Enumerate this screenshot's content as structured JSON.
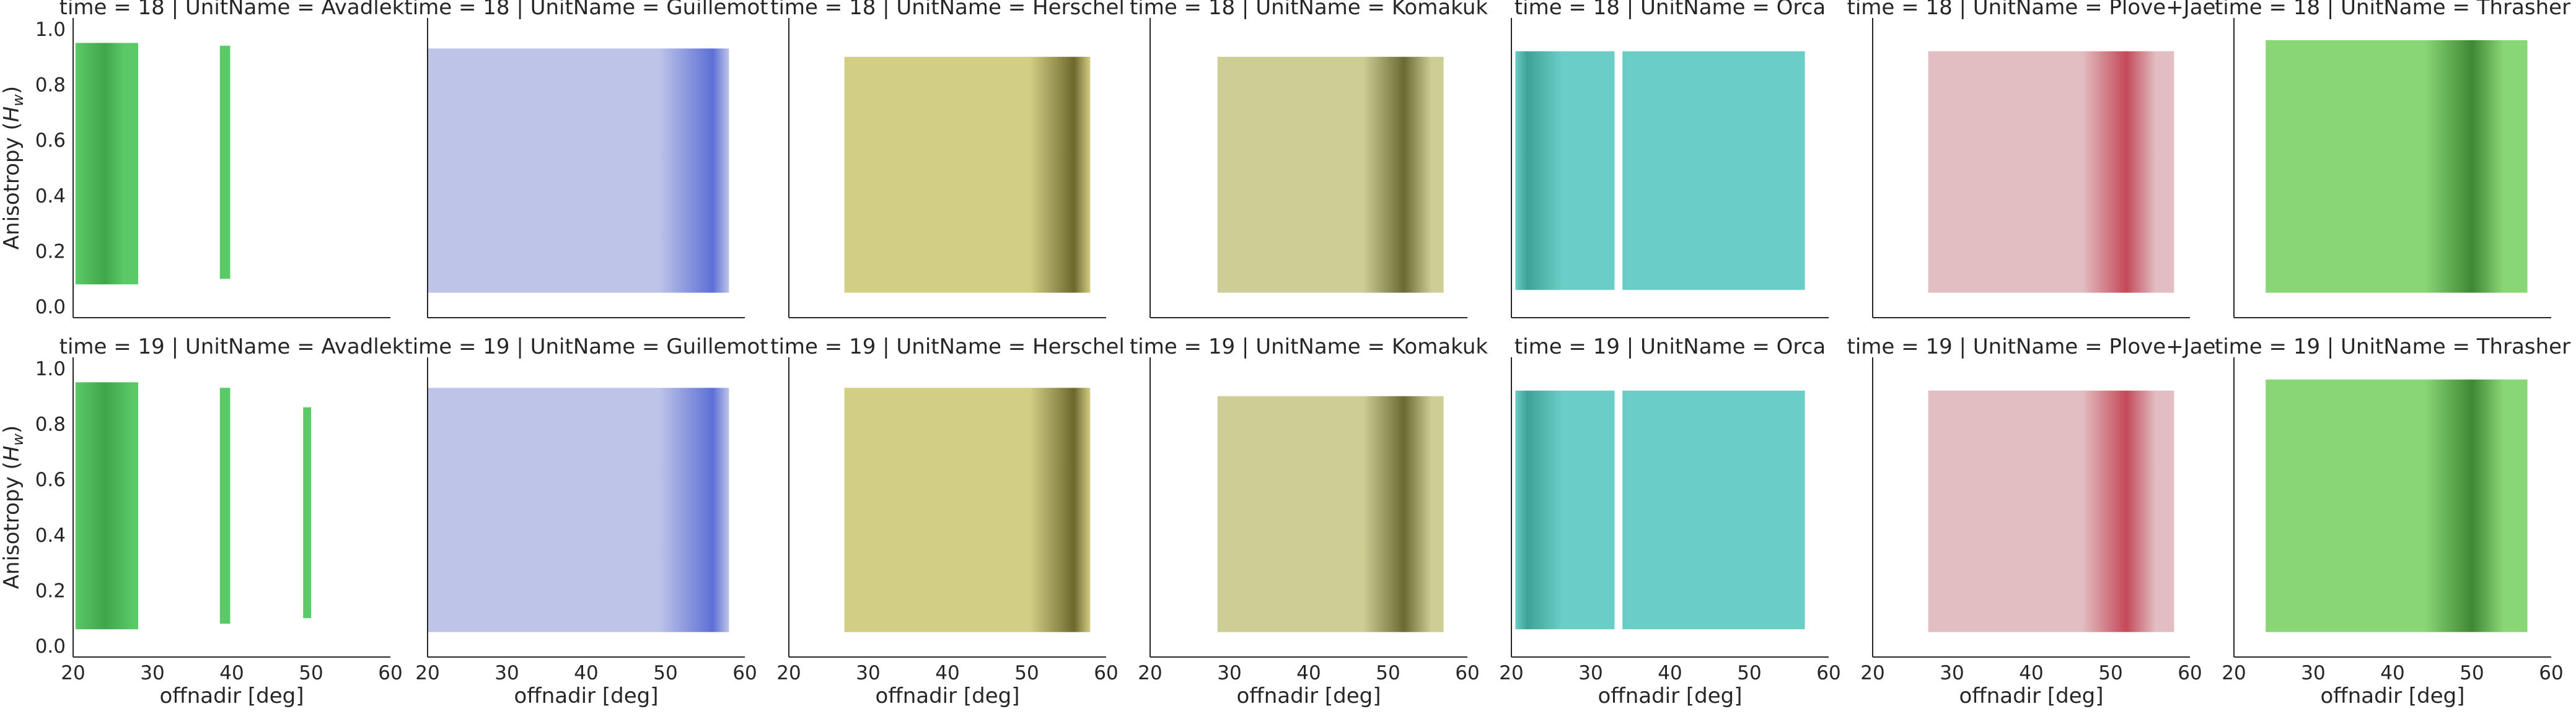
{
  "figure": {
    "ylabel": "Anisotropy ($H_w$)",
    "xlabel": "offnadir [deg]"
  },
  "chart_data": {
    "type": "scatter",
    "facet": {
      "rows": "time",
      "cols": "UnitName"
    },
    "times": [
      18,
      19
    ],
    "units": [
      "Avadlek",
      "Guillemot",
      "Herschel",
      "Komakuk",
      "Orca",
      "Plove+Jae",
      "Thrasher"
    ],
    "title_template": "time = {time} | UnitName = {unit}",
    "xlabel": "offnadir [deg]",
    "ylabel": "Anisotropy ($H_w$)",
    "xlim": [
      20,
      60
    ],
    "ylim": [
      -0.04,
      1.04
    ],
    "xticks": [
      20,
      30,
      40,
      50,
      60
    ],
    "yticks": [
      0.0,
      0.2,
      0.4,
      0.6,
      0.8,
      1.0
    ],
    "grid": false,
    "legend": "none",
    "series": [
      {
        "unit": "Avadlek",
        "color": "#4cc45a",
        "dense_color": "#2f9e3a",
        "time_18": {
          "segments": [
            {
              "x": [
                20.3,
                28.2
              ],
              "y": [
                0.08,
                0.95
              ]
            },
            {
              "x": [
                38.5,
                39.8
              ],
              "y": [
                0.1,
                0.94
              ]
            }
          ],
          "dense_x": 24
        },
        "time_19": {
          "segments": [
            {
              "x": [
                20.3,
                28.2
              ],
              "y": [
                0.06,
                0.95
              ]
            },
            {
              "x": [
                38.5,
                39.8
              ],
              "y": [
                0.08,
                0.93
              ]
            },
            {
              "x": [
                49.0,
                50.0
              ],
              "y": [
                0.1,
                0.86
              ]
            }
          ],
          "dense_x": 24
        }
      },
      {
        "unit": "Guillemot",
        "color": "#b7bfe6",
        "dense_color": "#4f63d1",
        "time_18": {
          "segments": [
            {
              "x": [
                20.0,
                58.0
              ],
              "y": [
                0.05,
                0.93
              ]
            }
          ],
          "dense_x": 56
        },
        "time_19": {
          "segments": [
            {
              "x": [
                20.0,
                58.0
              ],
              "y": [
                0.05,
                0.93
              ]
            }
          ],
          "dense_x": 56
        }
      },
      {
        "unit": "Herschel",
        "color": "#cfca7a",
        "dense_color": "#5f5b1a",
        "time_18": {
          "segments": [
            {
              "x": [
                27.0,
                58.0
              ],
              "y": [
                0.05,
                0.9
              ]
            }
          ],
          "dense_x": 56
        },
        "time_19": {
          "segments": [
            {
              "x": [
                27.0,
                58.0
              ],
              "y": [
                0.05,
                0.93
              ]
            }
          ],
          "dense_x": 56
        }
      },
      {
        "unit": "Komakuk",
        "color": "#c8c98a",
        "dense_color": "#5d5e22",
        "time_18": {
          "segments": [
            {
              "x": [
                28.5,
                57.0
              ],
              "y": [
                0.05,
                0.9
              ]
            }
          ],
          "dense_x": 52
        },
        "time_19": {
          "segments": [
            {
              "x": [
                28.5,
                57.0
              ],
              "y": [
                0.05,
                0.9
              ]
            }
          ],
          "dense_x": 52
        }
      },
      {
        "unit": "Orca",
        "color": "#5cc9c0",
        "dense_color": "#2e9a90",
        "time_18": {
          "segments": [
            {
              "x": [
                20.5,
                33.0
              ],
              "y": [
                0.06,
                0.92
              ]
            },
            {
              "x": [
                34.0,
                57.0
              ],
              "y": [
                0.06,
                0.92
              ]
            }
          ],
          "dense_x": 22
        },
        "time_19": {
          "segments": [
            {
              "x": [
                20.5,
                33.0
              ],
              "y": [
                0.06,
                0.92
              ]
            },
            {
              "x": [
                34.0,
                57.0
              ],
              "y": [
                0.06,
                0.92
              ]
            }
          ],
          "dense_x": 22
        }
      },
      {
        "unit": "Plove+Jae",
        "color": "#dfb8bc",
        "dense_color": "#c0394a",
        "time_18": {
          "segments": [
            {
              "x": [
                27.0,
                58.0
              ],
              "y": [
                0.05,
                0.92
              ]
            }
          ],
          "dense_x": 52
        },
        "time_19": {
          "segments": [
            {
              "x": [
                27.0,
                58.0
              ],
              "y": [
                0.05,
                0.92
              ]
            }
          ],
          "dense_x": 52
        }
      },
      {
        "unit": "Thrasher",
        "color": "#7fd36a",
        "dense_color": "#2e7d22",
        "time_18": {
          "segments": [
            {
              "x": [
                24.0,
                57.0
              ],
              "y": [
                0.05,
                0.96
              ]
            }
          ],
          "dense_x": 50
        },
        "time_19": {
          "segments": [
            {
              "x": [
                24.0,
                57.0
              ],
              "y": [
                0.05,
                0.96
              ]
            }
          ],
          "dense_x": 50
        }
      }
    ]
  }
}
